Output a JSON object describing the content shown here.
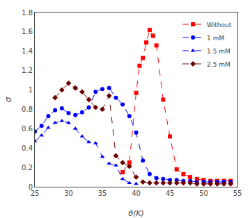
{
  "chart_data": {
    "type": "line",
    "xlabel": "θ(K)",
    "ylabel": "σ",
    "xlim": [
      25,
      55
    ],
    "ylim": [
      0,
      1.8
    ],
    "xticks": [
      25,
      30,
      35,
      40,
      45,
      50,
      55
    ],
    "yticks": [
      0.0,
      0.2,
      0.4,
      0.6,
      0.8,
      1.0,
      1.2,
      1.4,
      1.6,
      1.8
    ],
    "grid": false,
    "legend": "upper right",
    "series": [
      {
        "name": "Without",
        "color": "red",
        "marker": "square",
        "line_style": "dashed",
        "x": [
          38,
          39,
          40,
          40.5,
          41,
          41.5,
          42,
          42.5,
          43,
          44,
          45,
          46,
          47,
          48,
          49,
          50,
          51,
          52,
          53,
          54
        ],
        "values": [
          0.15,
          0.25,
          0.97,
          1.25,
          1.33,
          1.49,
          1.62,
          1.56,
          1.46,
          0.9,
          0.52,
          0.18,
          0.13,
          0.1,
          0.08,
          0.07,
          0.06,
          0.06,
          0.06,
          0.06
        ]
      },
      {
        "name": "1 mM",
        "color": "blue",
        "marker": "circle",
        "line_style": "dashed",
        "x": [
          25,
          26,
          27,
          28,
          29,
          30,
          31,
          32,
          33,
          34,
          35,
          36,
          37,
          38,
          39,
          40,
          41,
          42,
          43,
          44,
          45,
          46,
          47,
          48,
          49,
          50,
          51,
          52,
          53,
          54
        ],
        "values": [
          0.57,
          0.63,
          0.73,
          0.79,
          0.81,
          0.76,
          0.74,
          0.77,
          0.82,
          0.98,
          1.01,
          1.02,
          0.92,
          0.85,
          0.73,
          0.56,
          0.27,
          0.13,
          0.09,
          0.08,
          0.07,
          0.07,
          0.06,
          0.06,
          0.05,
          0.05,
          0.05,
          0.05,
          0.05,
          0.05
        ]
      },
      {
        "name": "1.5 mM",
        "color": "blue",
        "marker": "triangle",
        "line_style": "dashed",
        "x": [
          25,
          26,
          27,
          28,
          29,
          30,
          31,
          32,
          33,
          34,
          35,
          36,
          37,
          38,
          39,
          40
        ],
        "values": [
          0.47,
          0.53,
          0.61,
          0.66,
          0.68,
          0.66,
          0.6,
          0.52,
          0.46,
          0.45,
          0.31,
          0.24,
          0.22,
          0.08,
          0.04,
          0.03
        ]
      },
      {
        "name": "2.5 mM",
        "color": "#6b0000",
        "marker": "diamond",
        "line_style": "dashed",
        "x": [
          28,
          29,
          30,
          31,
          32,
          33,
          34,
          35,
          36,
          37,
          38,
          39,
          40,
          41,
          42,
          43,
          44,
          45,
          46,
          47,
          48,
          49,
          50,
          51,
          52,
          53,
          54
        ],
        "values": [
          0.92,
          1.0,
          1.07,
          1.02,
          0.98,
          0.9,
          0.82,
          0.8,
          0.94,
          0.32,
          0.25,
          0.21,
          0.1,
          0.05,
          0.04,
          0.04,
          0.04,
          0.04,
          0.04,
          0.04,
          0.04,
          0.03,
          0.03,
          0.03,
          0.03,
          0.03,
          0.03
        ]
      }
    ]
  }
}
